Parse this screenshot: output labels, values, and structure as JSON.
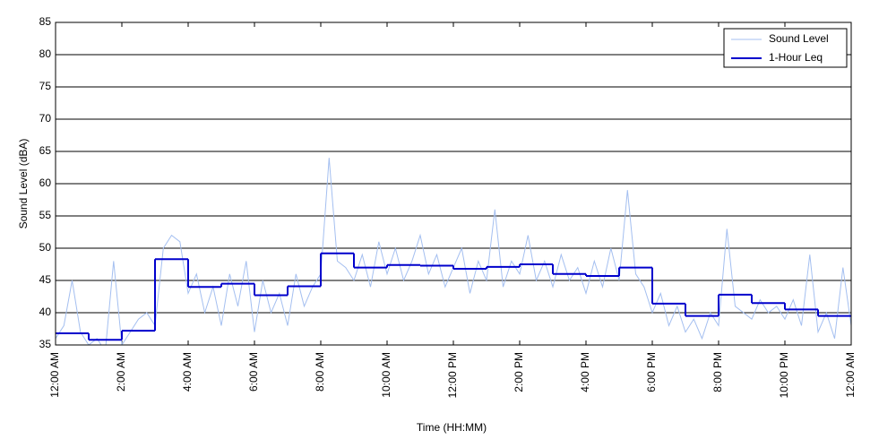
{
  "chart_data": {
    "type": "line",
    "xlabel": "Time (HH:MM)",
    "ylabel": "Sound Level (dBA)",
    "xlim": [
      0,
      24
    ],
    "xticks": [
      {
        "value": 0,
        "label": "12:00 AM"
      },
      {
        "value": 2,
        "label": "2:00 AM"
      },
      {
        "value": 4,
        "label": "4:00 AM"
      },
      {
        "value": 6,
        "label": "6:00 AM"
      },
      {
        "value": 8,
        "label": "8:00 AM"
      },
      {
        "value": 10,
        "label": "10:00 AM"
      },
      {
        "value": 12,
        "label": "12:00 PM"
      },
      {
        "value": 14,
        "label": "2:00 PM"
      },
      {
        "value": 16,
        "label": "4:00 PM"
      },
      {
        "value": 18,
        "label": "6:00 PM"
      },
      {
        "value": 20,
        "label": "8:00 PM"
      },
      {
        "value": 22,
        "label": "10:00 PM"
      },
      {
        "value": 24,
        "label": "12:00 AM"
      }
    ],
    "ylim": [
      35,
      85
    ],
    "yticks": [
      35,
      40,
      45,
      50,
      55,
      60,
      65,
      70,
      75,
      80,
      85
    ],
    "grid": true,
    "legend": "upper-right",
    "series": [
      {
        "name": "Sound Level",
        "color": "#a4bff0",
        "x": [
          0,
          0.25,
          0.5,
          0.75,
          1,
          1.25,
          1.5,
          1.75,
          2,
          2.25,
          2.5,
          2.75,
          3,
          3.25,
          3.5,
          3.75,
          4,
          4.25,
          4.5,
          4.75,
          5,
          5.25,
          5.5,
          5.75,
          6,
          6.25,
          6.5,
          6.75,
          7,
          7.25,
          7.5,
          7.75,
          8,
          8.25,
          8.5,
          8.75,
          9,
          9.25,
          9.5,
          9.75,
          10,
          10.25,
          10.5,
          10.75,
          11,
          11.25,
          11.5,
          11.75,
          12,
          12.25,
          12.5,
          12.75,
          13,
          13.25,
          13.5,
          13.75,
          14,
          14.25,
          14.5,
          14.75,
          15,
          15.25,
          15.5,
          15.75,
          16,
          16.25,
          16.5,
          16.75,
          17,
          17.25,
          17.5,
          17.75,
          18,
          18.25,
          18.5,
          18.75,
          19,
          19.25,
          19.5,
          19.75,
          20,
          20.25,
          20.5,
          20.75,
          21,
          21.25,
          21.5,
          21.75,
          22,
          22.25,
          22.5,
          22.75,
          23,
          23.25,
          23.5,
          23.75,
          24
        ],
        "values": [
          36,
          38,
          45,
          37,
          35,
          36,
          34,
          48,
          35,
          37,
          39,
          40,
          38,
          50,
          52,
          51,
          43,
          46,
          40,
          44,
          38,
          46,
          41,
          48,
          37,
          45,
          40,
          43,
          38,
          46,
          41,
          44,
          46,
          64,
          48,
          47,
          45,
          49,
          44,
          51,
          46,
          50,
          45,
          48,
          52,
          46,
          49,
          44,
          47,
          50,
          43,
          48,
          45,
          56,
          44,
          48,
          46,
          52,
          45,
          48,
          44,
          49,
          45,
          47,
          43,
          48,
          44,
          50,
          45,
          59,
          46,
          44,
          40,
          43,
          38,
          41,
          37,
          39,
          36,
          40,
          38,
          53,
          41,
          40,
          39,
          42,
          40,
          41,
          39,
          42,
          38,
          49,
          37,
          40,
          36,
          47,
          38
        ]
      },
      {
        "name": "1-Hour Leq",
        "color": "#0000cc",
        "bins": [
          0,
          1,
          2,
          3,
          4,
          5,
          6,
          7,
          8,
          9,
          10,
          11,
          12,
          13,
          14,
          15,
          16,
          17,
          18,
          19,
          20,
          21,
          22,
          23,
          24
        ],
        "values": [
          36.8,
          35.8,
          37.2,
          48.3,
          44.0,
          44.5,
          42.7,
          44.1,
          49.2,
          47.0,
          47.4,
          47.3,
          46.8,
          47.1,
          47.5,
          46.0,
          45.7,
          47.0,
          41.4,
          39.5,
          42.8,
          41.5,
          40.5,
          39.5
        ]
      }
    ]
  }
}
